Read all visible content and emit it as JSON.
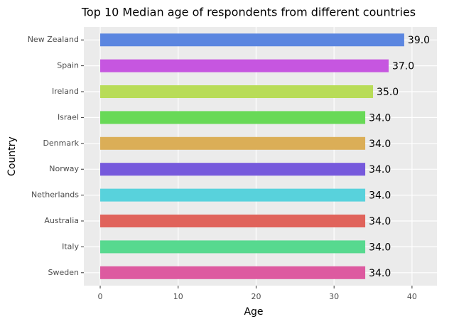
{
  "chart_data": {
    "type": "barh",
    "title": "Top 10 Median age of respondents from different countries",
    "x_label": "Age",
    "y_label": "Country",
    "categories": [
      "New Zealand",
      "Spain",
      "Ireland",
      "Israel",
      "Denmark",
      "Norway",
      "Netherlands",
      "Australia",
      "Italy",
      "Sweden"
    ],
    "values": [
      39,
      37,
      35,
      34,
      34,
      34,
      34,
      34,
      34,
      34
    ],
    "value_labels": [
      "39.0",
      "37.0",
      "35.0",
      "34.0",
      "34.0",
      "34.0",
      "34.0",
      "34.0",
      "34.0",
      "34.0"
    ],
    "colors": [
      "#5b86e0",
      "#c656e0",
      "#b8dc58",
      "#68d957",
      "#dbae57",
      "#7659dc",
      "#58d2dc",
      "#e0635b",
      "#57d98f",
      "#dd5aa0"
    ],
    "xlim": [
      -2.1,
      43.2
    ],
    "xticks": [
      0,
      10,
      20,
      30,
      40
    ],
    "grid": true
  }
}
